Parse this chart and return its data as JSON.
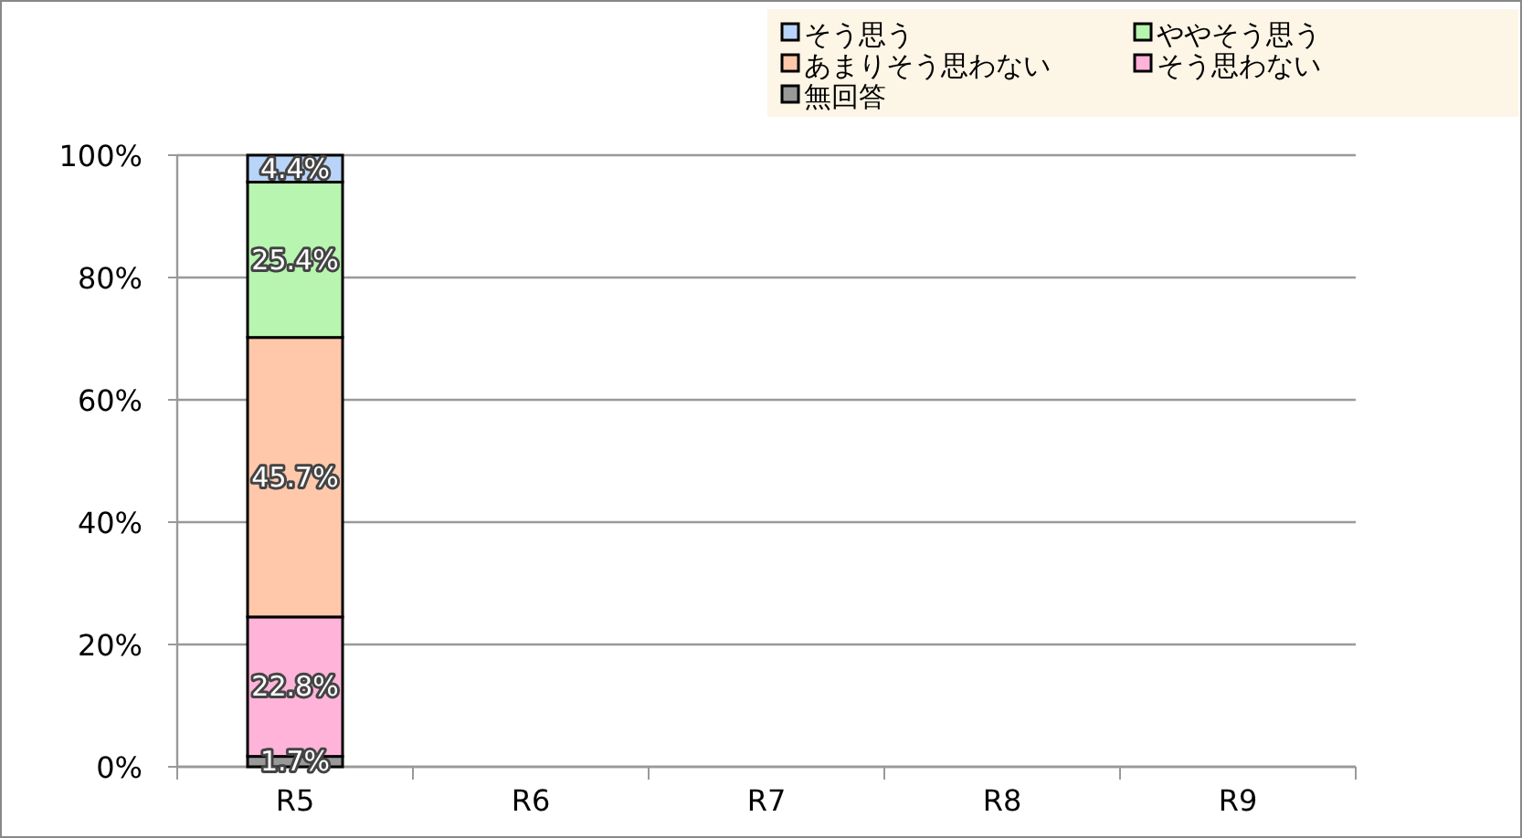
{
  "chart_data": {
    "type": "bar",
    "stacked": true,
    "categories": [
      "R5",
      "R6",
      "R7",
      "R8",
      "R9"
    ],
    "series": [
      {
        "name": "無回答",
        "color": "#999999",
        "values": [
          1.7,
          null,
          null,
          null,
          null
        ],
        "value_labels": [
          "1.7%",
          null,
          null,
          null,
          null
        ]
      },
      {
        "name": "そう思わない",
        "color": "#ffb3d9",
        "values": [
          22.8,
          null,
          null,
          null,
          null
        ],
        "value_labels": [
          "22.8%",
          null,
          null,
          null,
          null
        ]
      },
      {
        "name": "あまりそう思わない",
        "color": "#ffc8aa",
        "values": [
          45.7,
          null,
          null,
          null,
          null
        ],
        "value_labels": [
          "45.7%",
          null,
          null,
          null,
          null
        ]
      },
      {
        "name": "ややそう思う",
        "color": "#b8f5b0",
        "values": [
          25.4,
          null,
          null,
          null,
          null
        ],
        "value_labels": [
          "25.4%",
          null,
          null,
          null,
          null
        ]
      },
      {
        "name": "そう思う",
        "color": "#b8d4f8",
        "values": [
          4.4,
          null,
          null,
          null,
          null
        ],
        "value_labels": [
          "4.4%",
          null,
          null,
          null,
          null
        ]
      }
    ],
    "ylim": [
      0,
      100
    ],
    "yticks": [
      {
        "value": 0,
        "label": "0%"
      },
      {
        "value": 20,
        "label": "20%"
      },
      {
        "value": 40,
        "label": "40%"
      },
      {
        "value": 60,
        "label": "60%"
      },
      {
        "value": 80,
        "label": "80%"
      },
      {
        "value": 100,
        "label": "100%"
      }
    ],
    "grid": "y",
    "legend": "top right"
  }
}
